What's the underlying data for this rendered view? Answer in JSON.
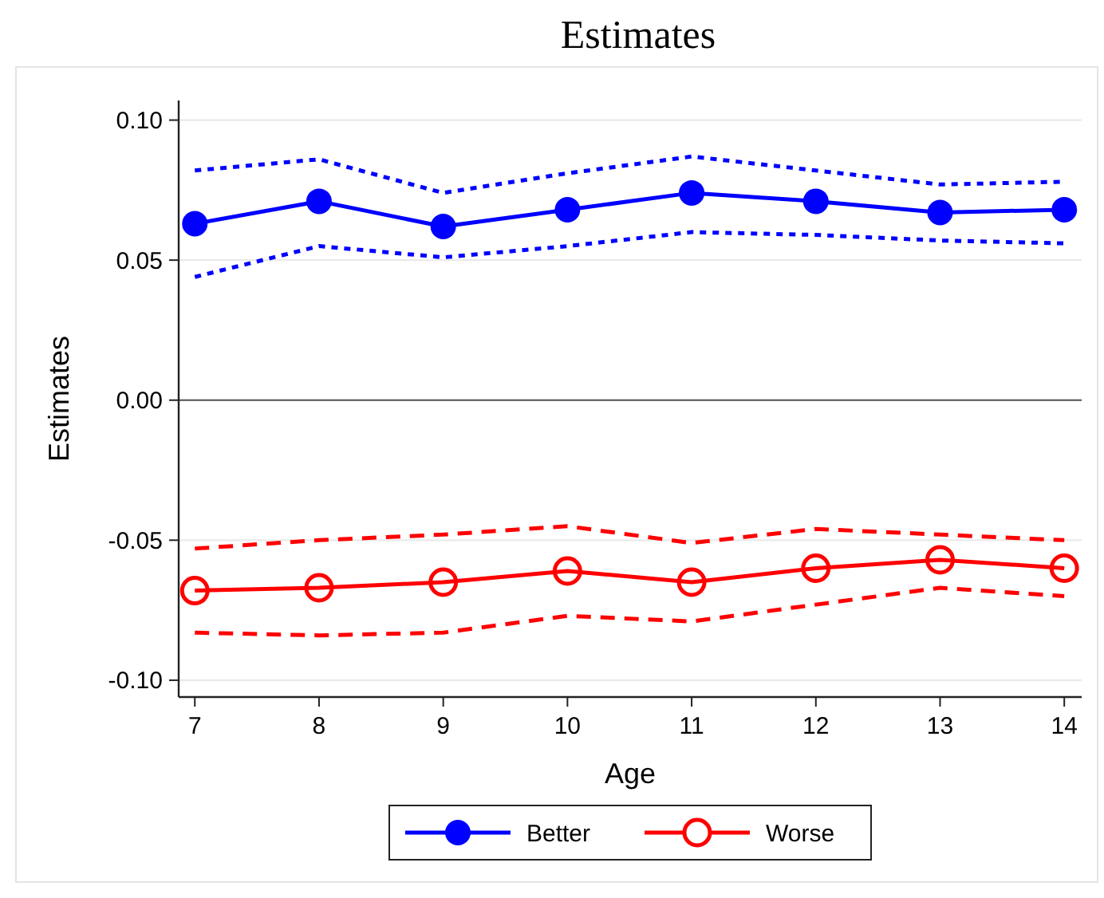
{
  "chart_data": {
    "type": "line",
    "title": "Estimates",
    "xlabel": "Age",
    "ylabel": "Estimates",
    "x": [
      7,
      8,
      9,
      10,
      11,
      12,
      13,
      14
    ],
    "xlim": [
      6.87,
      14.14
    ],
    "xticks": [
      7,
      8,
      9,
      10,
      11,
      12,
      13,
      14
    ],
    "ylim": [
      -0.106,
      0.107
    ],
    "yticks": [
      {
        "value": 0.1,
        "label": "0.10"
      },
      {
        "value": 0.05,
        "label": "0.05"
      },
      {
        "value": 0,
        "label": "0.00"
      },
      {
        "value": -0.05,
        "label": "-0.05"
      },
      {
        "value": -0.1,
        "label": "-0.10"
      }
    ],
    "grid": "y",
    "legend": "bottom",
    "ref_lines": [
      {
        "axis": "y",
        "value": 0,
        "color": "#555555"
      }
    ],
    "series": [
      {
        "color": "#0000ff",
        "line_style": "dotted",
        "marker": "none",
        "values": [
          0.082,
          0.086,
          0.074,
          0.081,
          0.087,
          0.082,
          0.077,
          0.078
        ]
      },
      {
        "color": "#0000ff",
        "line_style": "dotted",
        "marker": "none",
        "values": [
          0.044,
          0.055,
          0.051,
          0.055,
          0.06,
          0.059,
          0.057,
          0.056
        ]
      },
      {
        "color": "#ff0000",
        "line_style": "dashed",
        "marker": "none",
        "values": [
          -0.053,
          -0.05,
          -0.048,
          -0.045,
          -0.051,
          -0.046,
          -0.048,
          -0.05
        ]
      },
      {
        "color": "#ff0000",
        "line_style": "dashed",
        "marker": "none",
        "values": [
          -0.083,
          -0.084,
          -0.083,
          -0.077,
          -0.079,
          -0.073,
          -0.067,
          -0.07
        ]
      },
      {
        "name": "Better",
        "color": "#0000ff",
        "line_style": "solid",
        "marker": "circle",
        "values": [
          0.063,
          0.071,
          0.062,
          0.068,
          0.074,
          0.071,
          0.067,
          0.068
        ]
      },
      {
        "name": "Worse",
        "color": "#ff0000",
        "line_style": "solid",
        "marker": "open_circle",
        "values": [
          -0.068,
          -0.067,
          -0.065,
          -0.061,
          -0.065,
          -0.06,
          -0.057,
          -0.06
        ]
      }
    ]
  }
}
